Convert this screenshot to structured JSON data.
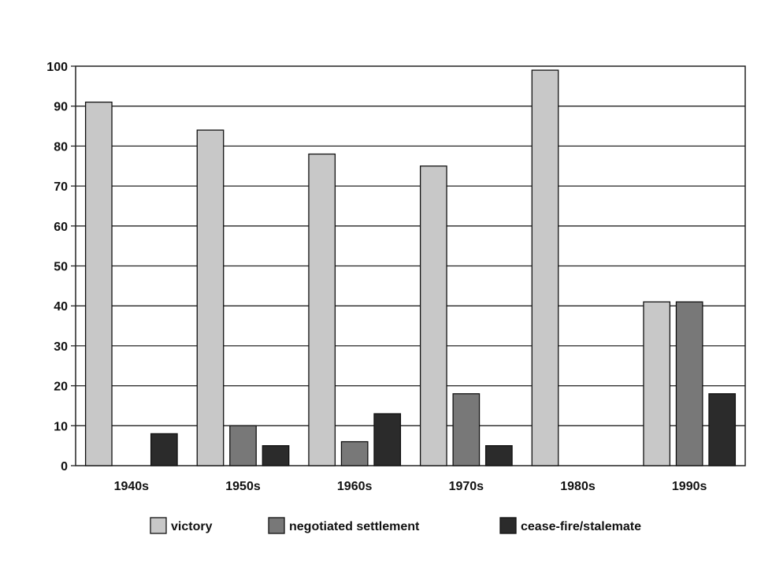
{
  "chart_data": {
    "type": "bar",
    "title": "",
    "xlabel": "",
    "ylabel": "",
    "ylim": [
      0,
      100
    ],
    "yticks": [
      0,
      10,
      20,
      30,
      40,
      50,
      60,
      70,
      80,
      90,
      100
    ],
    "grid": true,
    "legend_position": "bottom",
    "categories": [
      "1940s",
      "1950s",
      "1960s",
      "1970s",
      "1980s",
      "1990s"
    ],
    "series": [
      {
        "name": "victory",
        "color": "#c8c8c8",
        "values": [
          91,
          84,
          78,
          75,
          99,
          41
        ]
      },
      {
        "name": "negotiated settlement",
        "color": "#787878",
        "values": [
          0,
          10,
          6,
          18,
          0,
          41
        ]
      },
      {
        "name": "cease-fire/stalemate",
        "color": "#2b2b2b",
        "values": [
          8,
          5,
          13,
          5,
          0,
          18
        ]
      }
    ]
  }
}
